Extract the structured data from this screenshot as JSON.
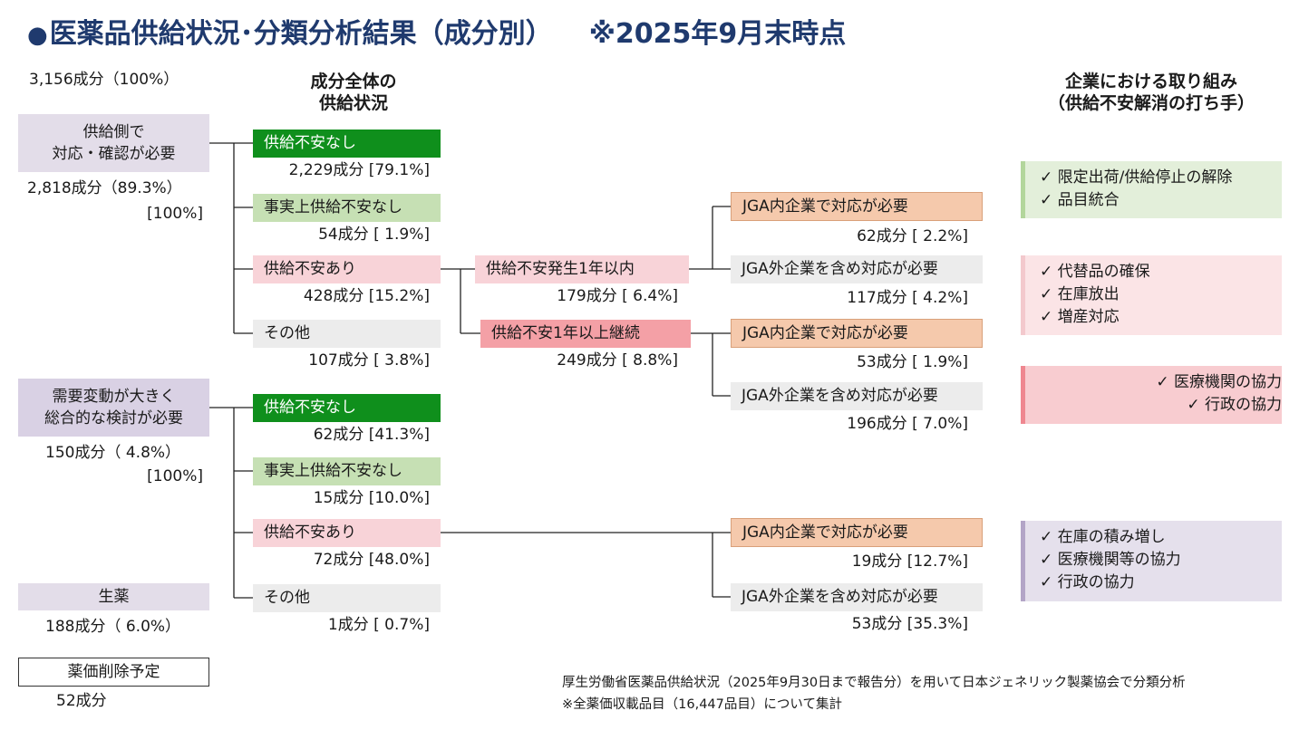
{
  "title": {
    "bullet": "●",
    "main": "医薬品供給状況･分類分析結果（成分別）",
    "date": "※2025年9月末時点"
  },
  "total": "3,156成分（100%）",
  "header_center": [
    "成分全体の",
    "供給状況"
  ],
  "header_right": [
    "企業における取り組み",
    "（供給不安解消の打ち手）"
  ],
  "left": {
    "cat1": {
      "label": [
        "供給側で",
        "対応・確認が必要"
      ],
      "count": "2,818成分（89.3%）",
      "pct": "[100%]"
    },
    "cat2": {
      "label": [
        "需要変動が大きく",
        "総合的な検討が必要"
      ],
      "count": "150成分（  4.8%）",
      "pct": "[100%]"
    },
    "cat3": {
      "label": "生薬",
      "count": "188成分（  6.0%）"
    },
    "cat4": {
      "label": "薬価削除予定",
      "count": "52成分"
    }
  },
  "group1": [
    {
      "label": "供給不安なし",
      "value": "2,229成分 [79.1%]"
    },
    {
      "label": "事実上供給不安なし",
      "value": "54成分 [  1.9%]"
    },
    {
      "label": "供給不安あり",
      "value": "428成分 [15.2%]"
    },
    {
      "label": "その他",
      "value": "107成分 [  3.8%]"
    }
  ],
  "group2": [
    {
      "label": "供給不安なし",
      "value": "62成分 [41.3%]"
    },
    {
      "label": "事実上供給不安なし",
      "value": "15成分 [10.0%]"
    },
    {
      "label": "供給不安あり",
      "value": "72成分 [48.0%]"
    },
    {
      "label": "その他",
      "value": "1成分 [  0.7%]"
    }
  ],
  "middle": [
    {
      "label": "供給不安発生1年以内",
      "value": "179成分 [  6.4%]"
    },
    {
      "label": "供給不安1年以上継続",
      "value": "249成分 [  8.8%]"
    }
  ],
  "right": [
    {
      "label": "JGA内企業で対応が必要",
      "value": "62成分 [  2.2%]"
    },
    {
      "label": "JGA外企業を含め対応が必要",
      "value": "117成分 [  4.2%]"
    },
    {
      "label": "JGA内企業で対応が必要",
      "value": "53成分 [  1.9%]"
    },
    {
      "label": "JGA外企業を含め対応が必要",
      "value": "196成分 [  7.0%]"
    },
    {
      "label": "JGA内企業で対応が必要",
      "value": "19成分 [12.7%]"
    },
    {
      "label": "JGA外企業を含め対応が必要",
      "value": "53成分 [35.3%]"
    }
  ],
  "actions": [
    [
      "✓ 限定出荷/供給停止の解除",
      "✓ 品目統合"
    ],
    [
      "✓ 代替品の確保",
      "✓ 在庫放出",
      "✓ 増産対応"
    ],
    [
      "✓ 医療機関の協力",
      "✓ 行政の協力"
    ],
    [
      "✓ 在庫の積み増し",
      "✓ 医療機関等の協力",
      "✓ 行政の協力"
    ]
  ],
  "notes": [
    "厚生労働省医薬品供給状況（2025年9月30日まで報告分）を用いて日本ジェネリック製薬協会で分類分析",
    "※全薬価収載品目（16,447品目）について集計"
  ]
}
